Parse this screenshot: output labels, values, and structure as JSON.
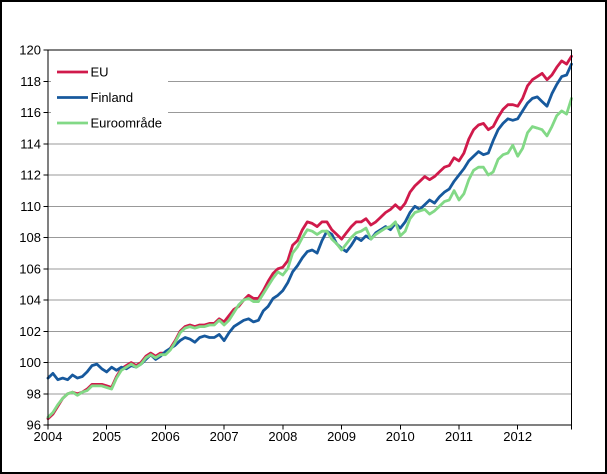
{
  "chart_data": {
    "type": "line",
    "title": "",
    "x_axis": {
      "unit": "month",
      "start": "2004-01",
      "end": "2012-12",
      "tick_labels": [
        "2004",
        "2005",
        "2006",
        "2007",
        "2008",
        "2009",
        "2010",
        "2011",
        "2012"
      ]
    },
    "y_axis": {
      "min": 96,
      "max": 120,
      "tick_step": 2,
      "tick_labels": [
        "96",
        "98",
        "100",
        "102",
        "104",
        "106",
        "108",
        "110",
        "112",
        "114",
        "116",
        "118",
        "120"
      ]
    },
    "grid": true,
    "legend_position": "top-left",
    "series": [
      {
        "name": "EU",
        "color": "#D01A4B",
        "values": [
          96.4,
          96.7,
          97.2,
          97.7,
          98.0,
          98.1,
          98.0,
          98.1,
          98.3,
          98.6,
          98.6,
          98.6,
          98.5,
          98.4,
          99.1,
          99.6,
          99.8,
          100.0,
          99.8,
          100.0,
          100.4,
          100.6,
          100.4,
          100.6,
          100.6,
          100.9,
          101.4,
          102.0,
          102.3,
          102.4,
          102.3,
          102.4,
          102.4,
          102.5,
          102.5,
          102.8,
          102.6,
          103.0,
          103.4,
          103.6,
          104.0,
          104.3,
          104.1,
          104.1,
          104.6,
          105.2,
          105.7,
          106.0,
          106.1,
          106.5,
          107.5,
          107.8,
          108.5,
          109.0,
          108.9,
          108.7,
          109.0,
          109.0,
          108.5,
          108.2,
          107.9,
          108.3,
          108.7,
          109.0,
          109.0,
          109.2,
          108.8,
          109.0,
          109.3,
          109.6,
          109.8,
          110.1,
          109.8,
          110.2,
          110.9,
          111.3,
          111.6,
          111.9,
          111.7,
          111.9,
          112.2,
          112.5,
          112.6,
          113.1,
          112.9,
          113.4,
          114.3,
          114.9,
          115.2,
          115.3,
          114.9,
          115.1,
          115.7,
          116.2,
          116.5,
          116.5,
          116.4,
          116.9,
          117.7,
          118.1,
          118.3,
          118.5,
          118.1,
          118.4,
          118.9,
          119.3,
          119.1,
          119.6
        ]
      },
      {
        "name": "Finland",
        "color": "#17599D",
        "values": [
          99.0,
          99.3,
          98.9,
          99.0,
          98.9,
          99.2,
          99.0,
          99.1,
          99.4,
          99.8,
          99.9,
          99.6,
          99.4,
          99.7,
          99.5,
          99.7,
          99.6,
          99.8,
          99.7,
          99.9,
          100.2,
          100.5,
          100.2,
          100.4,
          100.7,
          100.9,
          101.1,
          101.4,
          101.6,
          101.5,
          101.3,
          101.6,
          101.7,
          101.6,
          101.6,
          101.8,
          101.4,
          101.9,
          102.3,
          102.5,
          102.7,
          102.8,
          102.6,
          102.7,
          103.3,
          103.6,
          104.1,
          104.3,
          104.6,
          105.1,
          105.8,
          106.2,
          106.7,
          107.1,
          107.2,
          107.0,
          107.8,
          108.4,
          108.2,
          107.6,
          107.3,
          107.1,
          107.5,
          108.0,
          107.8,
          108.1,
          107.9,
          108.3,
          108.5,
          108.7,
          108.5,
          108.9,
          108.6,
          109.0,
          109.6,
          110.0,
          109.8,
          110.1,
          110.4,
          110.2,
          110.6,
          110.9,
          111.1,
          111.6,
          112.0,
          112.4,
          112.9,
          113.2,
          113.5,
          113.3,
          113.4,
          114.2,
          114.9,
          115.3,
          115.6,
          115.5,
          115.6,
          116.1,
          116.6,
          116.9,
          117.0,
          116.7,
          116.4,
          117.2,
          117.8,
          118.3,
          118.4,
          119.1
        ]
      },
      {
        "name": "Euroområde",
        "color": "#82D986",
        "values": [
          96.5,
          96.8,
          97.3,
          97.7,
          98.0,
          98.1,
          97.9,
          98.1,
          98.2,
          98.5,
          98.5,
          98.5,
          98.4,
          98.3,
          99.0,
          99.5,
          99.7,
          99.9,
          99.7,
          99.9,
          100.3,
          100.5,
          100.3,
          100.5,
          100.5,
          100.8,
          101.3,
          101.9,
          102.2,
          102.3,
          102.2,
          102.3,
          102.3,
          102.4,
          102.4,
          102.7,
          102.4,
          102.7,
          103.2,
          103.7,
          104.0,
          104.1,
          103.9,
          103.9,
          104.4,
          104.9,
          105.4,
          105.8,
          105.6,
          106.0,
          107.0,
          107.4,
          108.0,
          108.5,
          108.4,
          108.2,
          108.4,
          108.4,
          107.9,
          107.6,
          107.2,
          107.6,
          108.0,
          108.3,
          108.4,
          108.6,
          107.9,
          108.2,
          108.4,
          108.6,
          108.7,
          109.0,
          108.1,
          108.4,
          109.2,
          109.6,
          109.7,
          109.8,
          109.5,
          109.7,
          110.0,
          110.3,
          110.4,
          111.0,
          110.4,
          110.8,
          111.7,
          112.3,
          112.5,
          112.5,
          112.0,
          112.2,
          113.0,
          113.3,
          113.4,
          113.9,
          113.2,
          113.7,
          114.7,
          115.1,
          115.0,
          114.9,
          114.5,
          115.1,
          115.8,
          116.1,
          115.9,
          116.9
        ]
      }
    ]
  },
  "colors": {
    "gridline": "#999999",
    "axis": "#000000",
    "frame": "#000000",
    "background": "#FFFFFF"
  }
}
